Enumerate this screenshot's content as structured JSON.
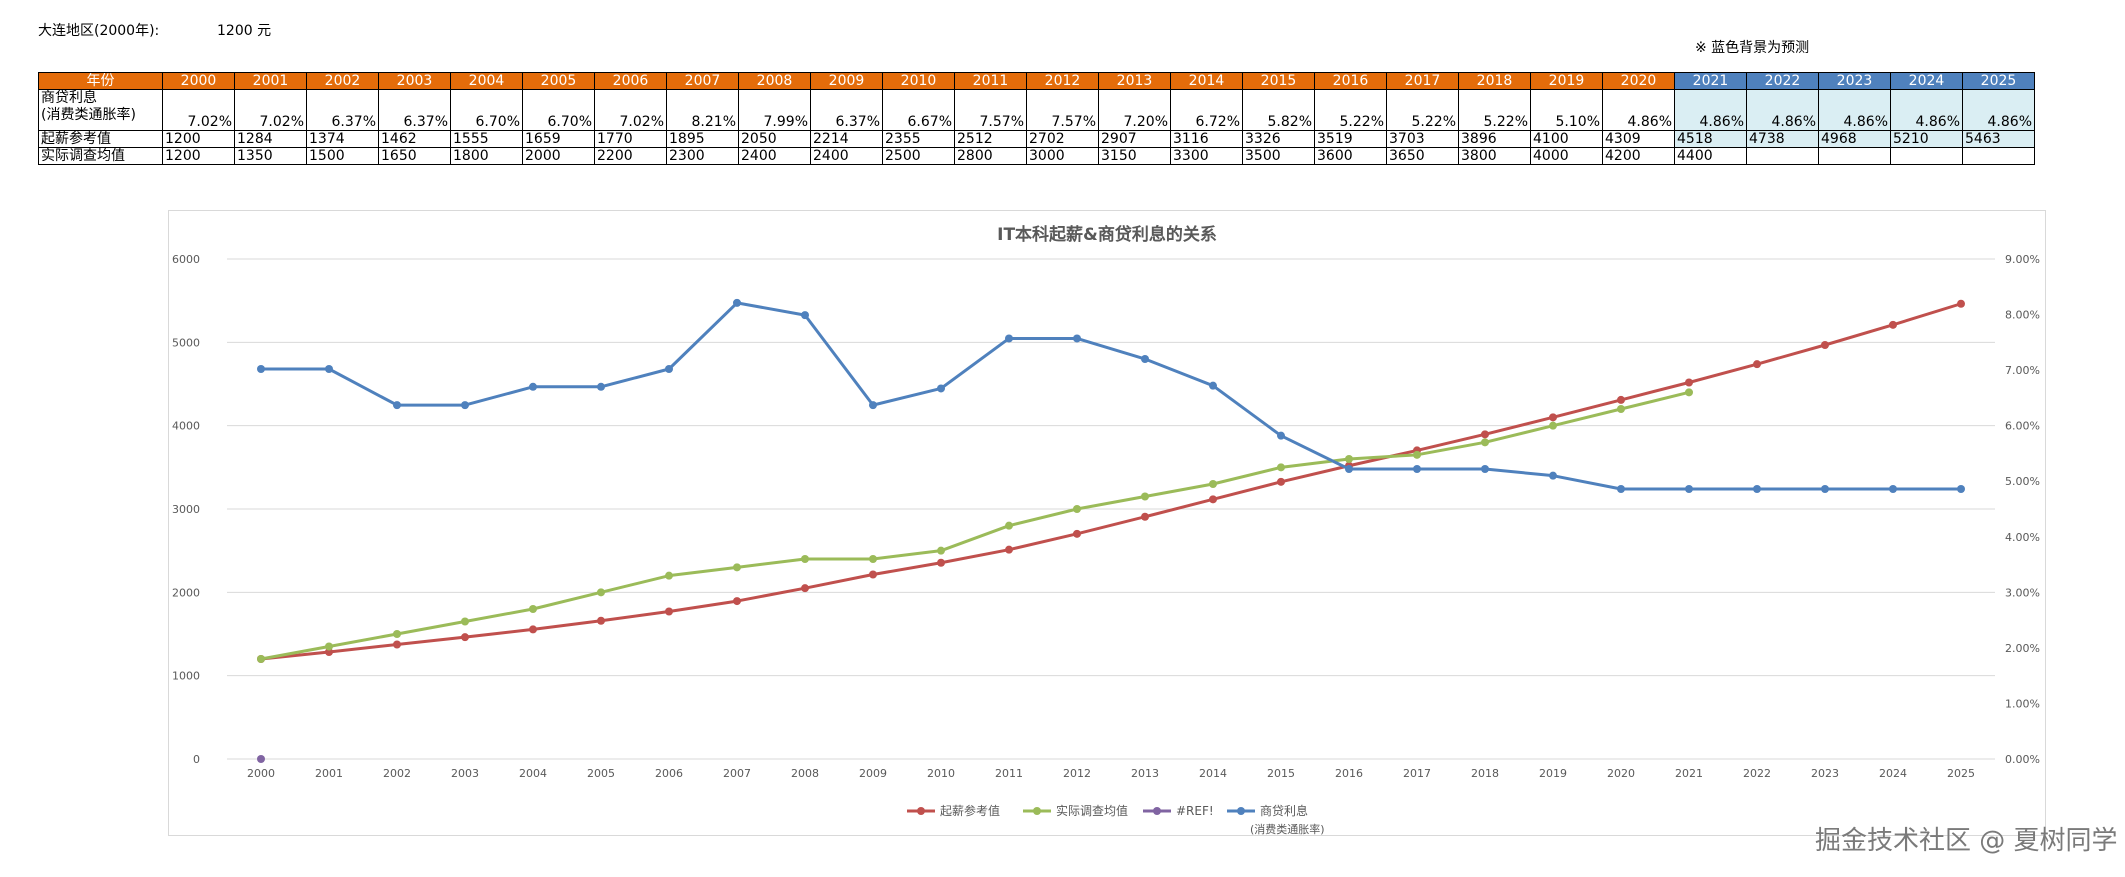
{
  "header": {
    "region_label": "大连地区(2000年):",
    "base_salary": "1200 元",
    "note": "※ 蓝色背景为预测"
  },
  "table": {
    "row_labels": {
      "year": "年份",
      "rate_line1": "商贷利息",
      "rate_line2": "(消费类通胀率)",
      "ref": "起薪参考值",
      "actual": "实际调查均值"
    },
    "forecast_from": "2021",
    "years": [
      "2000",
      "2001",
      "2002",
      "2003",
      "2004",
      "2005",
      "2006",
      "2007",
      "2008",
      "2009",
      "2010",
      "2011",
      "2012",
      "2013",
      "2014",
      "2015",
      "2016",
      "2017",
      "2018",
      "2019",
      "2020",
      "2021",
      "2022",
      "2023",
      "2024",
      "2025"
    ],
    "rates": [
      "7.02%",
      "7.02%",
      "6.37%",
      "6.37%",
      "6.70%",
      "6.70%",
      "7.02%",
      "8.21%",
      "7.99%",
      "6.37%",
      "6.67%",
      "7.57%",
      "7.57%",
      "7.20%",
      "6.72%",
      "5.82%",
      "5.22%",
      "5.22%",
      "5.22%",
      "5.10%",
      "4.86%",
      "4.86%",
      "4.86%",
      "4.86%",
      "4.86%",
      "4.86%"
    ],
    "ref": [
      "1200",
      "1284",
      "1374",
      "1462",
      "1555",
      "1659",
      "1770",
      "1895",
      "2050",
      "2214",
      "2355",
      "2512",
      "2702",
      "2907",
      "3116",
      "3326",
      "3519",
      "3703",
      "3896",
      "4100",
      "4309",
      "4518",
      "4738",
      "4968",
      "5210",
      "5463"
    ],
    "actual": [
      "1200",
      "1350",
      "1500",
      "1650",
      "1800",
      "2000",
      "2200",
      "2300",
      "2400",
      "2400",
      "2500",
      "2800",
      "3000",
      "3150",
      "3300",
      "3500",
      "3600",
      "3650",
      "3800",
      "4000",
      "4200",
      "4400",
      "",
      "",
      "",
      ""
    ]
  },
  "chart_data": {
    "type": "line",
    "title": "IT本科起薪&商贷利息的关系",
    "categories": [
      "2000",
      "2001",
      "2002",
      "2003",
      "2004",
      "2005",
      "2006",
      "2007",
      "2008",
      "2009",
      "2010",
      "2011",
      "2012",
      "2013",
      "2014",
      "2015",
      "2016",
      "2017",
      "2018",
      "2019",
      "2020",
      "2021",
      "2022",
      "2023",
      "2024",
      "2025"
    ],
    "y_left": {
      "ylim": [
        0,
        6000
      ],
      "ticks": [
        "0",
        "1000",
        "2000",
        "3000",
        "4000",
        "5000",
        "6000"
      ]
    },
    "y_right": {
      "ylim": [
        0,
        9
      ],
      "ticks": [
        "0.00%",
        "1.00%",
        "2.00%",
        "3.00%",
        "4.00%",
        "5.00%",
        "6.00%",
        "7.00%",
        "8.00%",
        "9.00%"
      ]
    },
    "grid": true,
    "legend_position": "bottom",
    "series": [
      {
        "name": "起薪参考值",
        "color": "#C0504D",
        "axis": "left",
        "values": [
          1200,
          1284,
          1374,
          1462,
          1555,
          1659,
          1770,
          1895,
          2050,
          2214,
          2355,
          2512,
          2702,
          2907,
          3116,
          3326,
          3519,
          3703,
          3896,
          4100,
          4309,
          4518,
          4738,
          4968,
          5210,
          5463
        ]
      },
      {
        "name": "实际调查均值",
        "color": "#9BBB59",
        "axis": "left",
        "values": [
          1200,
          1350,
          1500,
          1650,
          1800,
          2000,
          2200,
          2300,
          2400,
          2400,
          2500,
          2800,
          3000,
          3150,
          3300,
          3500,
          3600,
          3650,
          3800,
          4000,
          4200,
          4400,
          null,
          null,
          null,
          null
        ]
      },
      {
        "name": "#REF!",
        "color": "#8064A2",
        "axis": "left",
        "values": [
          0,
          null,
          null,
          null,
          null,
          null,
          null,
          null,
          null,
          null,
          null,
          null,
          null,
          null,
          null,
          null,
          null,
          null,
          null,
          null,
          null,
          null,
          null,
          null,
          null,
          null
        ]
      },
      {
        "name": "商贷利息",
        "name_line2": "(消费类通胀率)",
        "color": "#4F81BD",
        "axis": "right",
        "values": [
          7.02,
          7.02,
          6.37,
          6.37,
          6.7,
          6.7,
          7.02,
          8.21,
          7.99,
          6.37,
          6.67,
          7.57,
          7.57,
          7.2,
          6.72,
          5.82,
          5.22,
          5.22,
          5.22,
          5.1,
          4.86,
          4.86,
          4.86,
          4.86,
          4.86,
          4.86
        ]
      }
    ]
  },
  "watermark": "掘金技术社区 @ 夏树同学"
}
